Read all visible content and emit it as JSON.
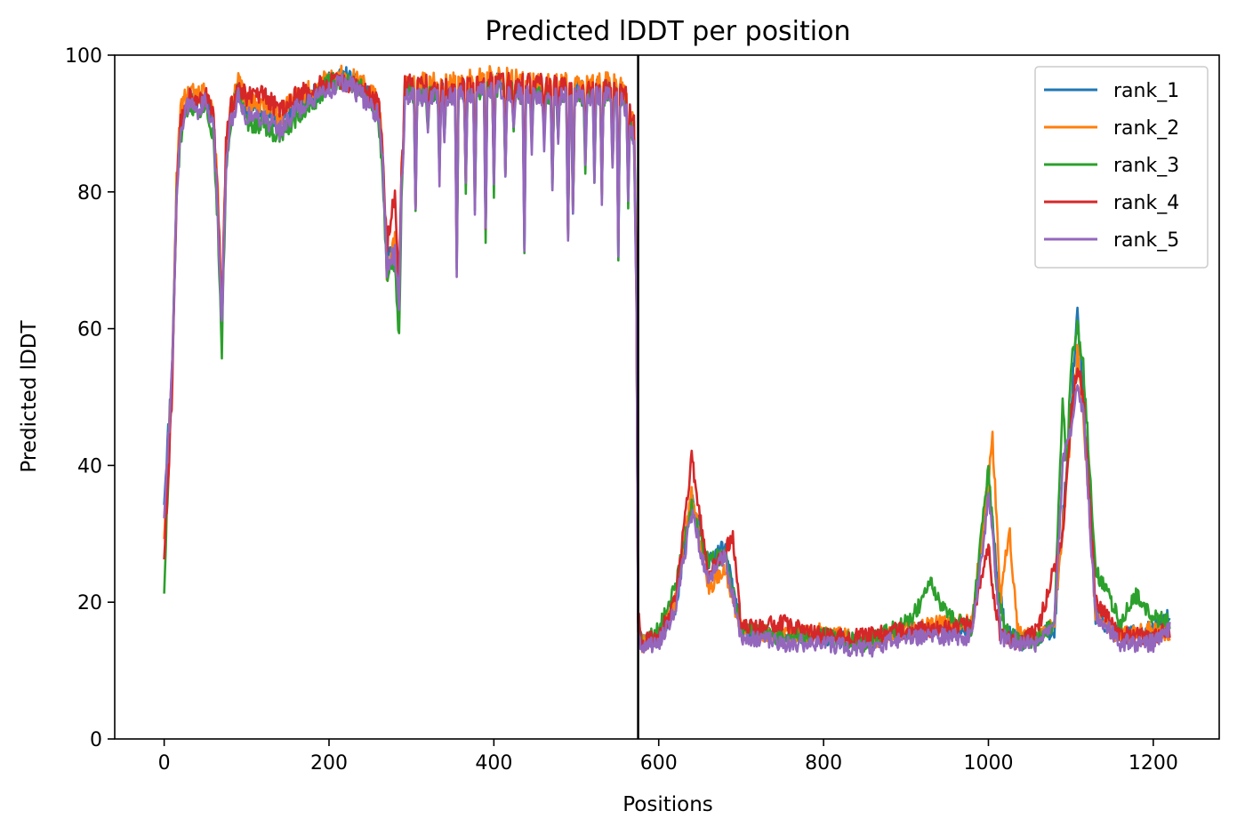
{
  "chart_data": {
    "type": "line",
    "title": "Predicted lDDT per position",
    "xlabel": "Positions",
    "ylabel": "Predicted lDDT",
    "xlim": [
      -60,
      1280
    ],
    "ylim": [
      0,
      100
    ],
    "xticks": [
      0,
      200,
      400,
      600,
      800,
      1000,
      1200
    ],
    "yticks": [
      0,
      20,
      40,
      60,
      80,
      100
    ],
    "grid": false,
    "legend_position": "upper right",
    "vertical_line": {
      "x": 575,
      "color": "#000000"
    },
    "series": [
      {
        "name": "rank_1",
        "color": "#1f77b4",
        "seed": 11,
        "x": [
          0,
          5,
          10,
          15,
          20,
          30,
          40,
          50,
          60,
          65,
          70,
          75,
          80,
          90,
          100,
          120,
          140,
          160,
          180,
          200,
          220,
          240,
          260,
          265,
          270,
          280,
          285,
          290,
          300,
          350,
          400,
          450,
          500,
          550,
          560,
          570,
          573,
          575,
          580,
          600,
          620,
          640,
          660,
          680,
          700,
          750,
          800,
          850,
          900,
          950,
          980,
          1000,
          1010,
          1020,
          1040,
          1060,
          1080,
          1100,
          1108,
          1115,
          1130,
          1160,
          1200,
          1220
        ],
        "y": [
          35,
          45,
          55,
          80,
          90,
          94,
          93,
          94,
          90,
          78,
          62,
          85,
          91,
          95,
          92,
          92,
          90,
          93,
          94,
          96,
          97,
          95,
          92,
          85,
          70,
          72,
          62,
          95,
          95,
          95,
          96,
          95,
          95,
          95,
          93,
          90,
          65,
          18,
          14,
          15,
          19,
          35,
          26,
          28,
          16,
          15,
          15,
          14,
          16,
          16,
          16,
          38,
          25,
          16,
          14,
          15,
          16,
          48,
          63,
          50,
          18,
          15,
          16,
          18
        ]
      },
      {
        "name": "rank_2",
        "color": "#ff7f0e",
        "seed": 22,
        "x": [
          0,
          5,
          10,
          15,
          20,
          30,
          40,
          50,
          60,
          65,
          70,
          75,
          80,
          90,
          100,
          120,
          140,
          160,
          180,
          200,
          220,
          240,
          260,
          265,
          270,
          280,
          285,
          290,
          300,
          350,
          400,
          450,
          500,
          550,
          560,
          570,
          573,
          575,
          580,
          600,
          620,
          640,
          660,
          680,
          700,
          750,
          800,
          850,
          900,
          950,
          980,
          1000,
          1005,
          1015,
          1025,
          1035,
          1040,
          1060,
          1080,
          1100,
          1108,
          1115,
          1130,
          1160,
          1200,
          1220
        ],
        "y": [
          30,
          42,
          55,
          82,
          92,
          95,
          94,
          95,
          91,
          80,
          63,
          86,
          92,
          96,
          93,
          93,
          91,
          94,
          95,
          97,
          97,
          96,
          93,
          86,
          68,
          73,
          63,
          96,
          96,
          96,
          97,
          96,
          96,
          96,
          94,
          90,
          66,
          17,
          14,
          15,
          20,
          36,
          22,
          25,
          16,
          15,
          16,
          14,
          16,
          17,
          17,
          38,
          44,
          20,
          31,
          17,
          15,
          15,
          17,
          45,
          57,
          48,
          18,
          15,
          16,
          15
        ]
      },
      {
        "name": "rank_3",
        "color": "#2ca02c",
        "seed": 33,
        "x": [
          0,
          5,
          10,
          15,
          20,
          30,
          40,
          50,
          60,
          65,
          70,
          75,
          80,
          90,
          100,
          120,
          140,
          160,
          180,
          200,
          220,
          240,
          260,
          265,
          270,
          280,
          285,
          290,
          300,
          350,
          400,
          450,
          500,
          550,
          560,
          570,
          573,
          575,
          580,
          600,
          620,
          640,
          660,
          680,
          700,
          750,
          800,
          850,
          900,
          920,
          930,
          950,
          980,
          1000,
          1010,
          1020,
          1040,
          1060,
          1080,
          1090,
          1095,
          1100,
          1108,
          1115,
          1130,
          1160,
          1180,
          1200,
          1220
        ],
        "y": [
          22,
          38,
          55,
          79,
          88,
          93,
          92,
          93,
          88,
          75,
          57,
          83,
          90,
          95,
          90,
          90,
          88,
          91,
          93,
          96,
          96,
          95,
          91,
          83,
          68,
          70,
          58,
          95,
          94,
          94,
          95,
          94,
          94,
          94,
          92,
          88,
          64,
          18,
          14,
          16,
          22,
          34,
          26,
          27,
          16,
          15,
          15,
          14,
          17,
          20,
          23,
          18,
          16,
          40,
          22,
          16,
          14,
          15,
          17,
          50,
          40,
          55,
          60,
          55,
          25,
          17,
          21,
          18,
          17
        ]
      },
      {
        "name": "rank_4",
        "color": "#d62728",
        "seed": 44,
        "x": [
          0,
          5,
          10,
          15,
          20,
          30,
          40,
          50,
          60,
          65,
          70,
          75,
          80,
          90,
          100,
          120,
          140,
          160,
          180,
          200,
          220,
          240,
          260,
          265,
          270,
          280,
          285,
          290,
          300,
          350,
          400,
          450,
          500,
          550,
          560,
          570,
          573,
          575,
          580,
          600,
          620,
          640,
          660,
          680,
          690,
          700,
          750,
          800,
          850,
          900,
          950,
          980,
          1000,
          1005,
          1015,
          1040,
          1060,
          1080,
          1090,
          1100,
          1108,
          1115,
          1130,
          1160,
          1200,
          1220
        ],
        "y": [
          27,
          38,
          52,
          80,
          90,
          94,
          94,
          94,
          91,
          79,
          62,
          87,
          92,
          95,
          94,
          94,
          92,
          94,
          95,
          96,
          96,
          95,
          93,
          87,
          72,
          80,
          65,
          96,
          96,
          95,
          96,
          96,
          95,
          95,
          94,
          90,
          66,
          18,
          14,
          15,
          20,
          41,
          24,
          27,
          30,
          16,
          17,
          15,
          15,
          16,
          16,
          17,
          28,
          22,
          15,
          14,
          16,
          25,
          30,
          47,
          55,
          50,
          20,
          15,
          15,
          16
        ]
      },
      {
        "name": "rank_5",
        "color": "#9467bd",
        "seed": 55,
        "x": [
          0,
          5,
          10,
          15,
          20,
          30,
          40,
          50,
          60,
          65,
          70,
          75,
          80,
          90,
          100,
          120,
          140,
          160,
          180,
          200,
          220,
          240,
          260,
          265,
          270,
          280,
          285,
          290,
          300,
          350,
          400,
          450,
          500,
          550,
          560,
          570,
          573,
          575,
          580,
          600,
          620,
          640,
          660,
          680,
          700,
          750,
          800,
          850,
          900,
          950,
          980,
          1000,
          1005,
          1015,
          1040,
          1060,
          1080,
          1090,
          1100,
          1108,
          1115,
          1130,
          1160,
          1200,
          1220
        ],
        "y": [
          33,
          44,
          55,
          80,
          89,
          93,
          92,
          93,
          89,
          77,
          60,
          84,
          90,
          94,
          91,
          91,
          89,
          92,
          93,
          95,
          96,
          94,
          91,
          84,
          69,
          71,
          64,
          94,
          94,
          94,
          95,
          94,
          94,
          94,
          92,
          88,
          64,
          16,
          13,
          14,
          19,
          33,
          23,
          27,
          15,
          14,
          14,
          13,
          15,
          15,
          15,
          35,
          30,
          15,
          14,
          14,
          16,
          40,
          45,
          52,
          48,
          18,
          14,
          14,
          16
        ]
      }
    ]
  }
}
